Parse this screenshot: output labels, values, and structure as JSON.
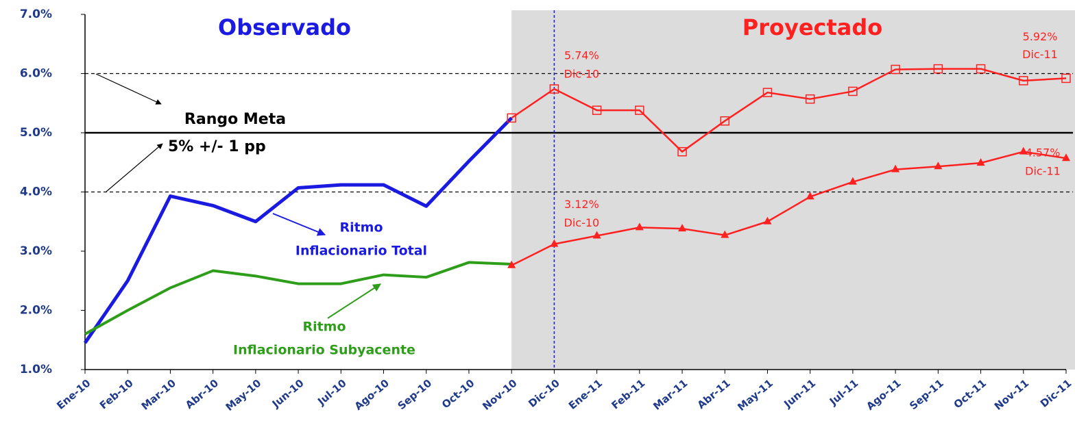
{
  "chart_data": {
    "type": "line",
    "categories": [
      "Ene-10",
      "Feb-10",
      "Mar-10",
      "Abr-10",
      "May-10",
      "Jun-10",
      "Jul-10",
      "Ago-10",
      "Sep-10",
      "Oct-10",
      "Nov-10",
      "Dic-10",
      "Ene-11",
      "Feb-11",
      "Mar-11",
      "Abr-11",
      "May-11",
      "Jun-11",
      "Jul-11",
      "Ago-11",
      "Sep-11",
      "Oct-11",
      "Nov-11",
      "Dic-11"
    ],
    "series": [
      {
        "color": "#1a1ae0",
        "marker": "none",
        "width": 5,
        "values": [
          1.45,
          2.5,
          3.93,
          3.77,
          3.5,
          4.07,
          4.12,
          4.12,
          3.76,
          4.52,
          5.25,
          null,
          null,
          null,
          null,
          null,
          null,
          null,
          null,
          null,
          null,
          null,
          null,
          null
        ]
      },
      {
        "color": "#2e9e1a",
        "marker": "none",
        "width": 4,
        "values": [
          1.6,
          2.0,
          2.38,
          2.67,
          2.58,
          2.45,
          2.45,
          2.6,
          2.56,
          2.81,
          2.78,
          null,
          null,
          null,
          null,
          null,
          null,
          null,
          null,
          null,
          null,
          null,
          null,
          null
        ]
      },
      {
        "color": "#ff2020",
        "marker": "square",
        "width": 2.5,
        "values": [
          null,
          null,
          null,
          null,
          null,
          null,
          null,
          null,
          null,
          null,
          5.25,
          5.74,
          5.38,
          5.38,
          4.68,
          5.2,
          5.68,
          5.57,
          5.7,
          6.07,
          6.08,
          6.08,
          5.88,
          5.92
        ],
        "value_labels": [
          null,
          null,
          null,
          null,
          null,
          null,
          null,
          null,
          null,
          null,
          null,
          "5.74%",
          null,
          null,
          null,
          null,
          null,
          null,
          null,
          null,
          null,
          null,
          null,
          "5.92%"
        ],
        "value_sublabels": [
          null,
          null,
          null,
          null,
          null,
          null,
          null,
          null,
          null,
          null,
          null,
          "Dic-10",
          null,
          null,
          null,
          null,
          null,
          null,
          null,
          null,
          null,
          null,
          null,
          "Dic-11"
        ]
      },
      {
        "color": "#ff2020",
        "marker": "triangle",
        "width": 2.5,
        "values": [
          null,
          null,
          null,
          null,
          null,
          null,
          null,
          null,
          null,
          null,
          2.76,
          3.12,
          3.26,
          3.4,
          3.38,
          3.27,
          3.5,
          3.92,
          4.17,
          4.38,
          4.43,
          4.49,
          4.68,
          4.57
        ],
        "value_labels": [
          null,
          null,
          null,
          null,
          null,
          null,
          null,
          null,
          null,
          null,
          null,
          "3.12%",
          null,
          null,
          null,
          null,
          null,
          null,
          null,
          null,
          null,
          null,
          null,
          "4.57%"
        ],
        "value_sublabels": [
          null,
          null,
          null,
          null,
          null,
          null,
          null,
          null,
          null,
          null,
          null,
          "Dic-10",
          null,
          null,
          null,
          null,
          null,
          null,
          null,
          null,
          null,
          null,
          null,
          "Dic-11"
        ]
      }
    ],
    "ylim": [
      1,
      7
    ],
    "yticks": [
      {
        "value": 1,
        "label": "1.0%"
      },
      {
        "value": 2,
        "label": "2.0%"
      },
      {
        "value": 3,
        "label": "3.0%"
      },
      {
        "value": 4,
        "label": "4.0%"
      },
      {
        "value": 5,
        "label": "5.0%"
      },
      {
        "value": 6,
        "label": "6.0%"
      },
      {
        "value": 7,
        "label": "7.0%"
      }
    ],
    "reference_lines": [
      {
        "value": 4,
        "style": "dashed"
      },
      {
        "value": 5,
        "style": "solid"
      },
      {
        "value": 6,
        "style": "dashed"
      }
    ],
    "annotations": [
      "Observado",
      "Proyectado",
      "Rango Meta",
      "5% +/- 1 pp",
      "Ritmo",
      "Inflacionario Total",
      "Ritmo",
      "Inflacionario Subyacente"
    ]
  }
}
